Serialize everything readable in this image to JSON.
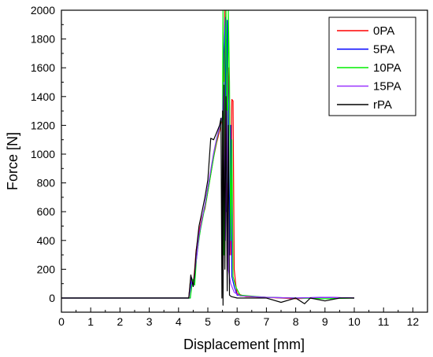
{
  "chart_data": {
    "type": "line",
    "title": "",
    "xlabel": "Displacement [mm]",
    "ylabel": "Force [N]",
    "xlim": [
      0,
      12.5
    ],
    "ylim": [
      -100,
      2000
    ],
    "x_ticks": [
      0,
      1,
      2,
      3,
      4,
      5,
      6,
      7,
      8,
      9,
      10,
      11,
      12
    ],
    "y_ticks": [
      0,
      200,
      400,
      600,
      800,
      1000,
      1200,
      1400,
      1600,
      1800,
      2000
    ],
    "grid": false,
    "legend": "top-right",
    "series": [
      {
        "name": "0PA",
        "color": "#ff0000",
        "points": [
          [
            0,
            0
          ],
          [
            4.35,
            0
          ],
          [
            4.42,
            150
          ],
          [
            4.5,
            90
          ],
          [
            4.55,
            200
          ],
          [
            4.6,
            330
          ],
          [
            4.7,
            460
          ],
          [
            4.8,
            560
          ],
          [
            4.9,
            620
          ],
          [
            5.0,
            740
          ],
          [
            5.1,
            860
          ],
          [
            5.2,
            980
          ],
          [
            5.3,
            1080
          ],
          [
            5.4,
            1160
          ],
          [
            5.5,
            1250
          ],
          [
            5.55,
            1300
          ],
          [
            5.58,
            2000
          ],
          [
            5.6,
            900
          ],
          [
            5.63,
            1800
          ],
          [
            5.66,
            400
          ],
          [
            5.7,
            1600
          ],
          [
            5.75,
            1300
          ],
          [
            5.78,
            300
          ],
          [
            5.82,
            1380
          ],
          [
            5.86,
            1370
          ],
          [
            5.9,
            200
          ],
          [
            5.95,
            100
          ],
          [
            6.0,
            30
          ],
          [
            6.3,
            10
          ],
          [
            7,
            5
          ],
          [
            8,
            -5
          ],
          [
            9,
            5
          ],
          [
            10,
            0
          ]
        ]
      },
      {
        "name": "5PA",
        "color": "#0000ff",
        "points": [
          [
            0,
            0
          ],
          [
            4.4,
            0
          ],
          [
            4.45,
            140
          ],
          [
            4.5,
            80
          ],
          [
            4.6,
            250
          ],
          [
            4.7,
            420
          ],
          [
            4.8,
            540
          ],
          [
            4.9,
            640
          ],
          [
            5.0,
            760
          ],
          [
            5.1,
            880
          ],
          [
            5.2,
            1000
          ],
          [
            5.3,
            1100
          ],
          [
            5.4,
            1180
          ],
          [
            5.5,
            1260
          ],
          [
            5.55,
            1700
          ],
          [
            5.6,
            1950
          ],
          [
            5.63,
            600
          ],
          [
            5.66,
            1930
          ],
          [
            5.7,
            1400
          ],
          [
            5.74,
            300
          ],
          [
            5.78,
            1200
          ],
          [
            5.82,
            150
          ],
          [
            5.9,
            80
          ],
          [
            6.0,
            20
          ],
          [
            6.5,
            10
          ],
          [
            7,
            5
          ],
          [
            8,
            0
          ],
          [
            9,
            5
          ],
          [
            10,
            0
          ]
        ]
      },
      {
        "name": "10PA",
        "color": "#00ee00",
        "points": [
          [
            0,
            0
          ],
          [
            4.4,
            0
          ],
          [
            4.48,
            130
          ],
          [
            4.55,
            90
          ],
          [
            4.62,
            300
          ],
          [
            4.75,
            480
          ],
          [
            4.85,
            580
          ],
          [
            4.95,
            680
          ],
          [
            5.05,
            800
          ],
          [
            5.15,
            920
          ],
          [
            5.25,
            1040
          ],
          [
            5.35,
            1140
          ],
          [
            5.45,
            1220
          ],
          [
            5.5,
            1240
          ],
          [
            5.52,
            2000
          ],
          [
            5.55,
            300
          ],
          [
            5.58,
            1600
          ],
          [
            5.62,
            2000
          ],
          [
            5.66,
            800
          ],
          [
            5.7,
            2000
          ],
          [
            5.74,
            1500
          ],
          [
            5.78,
            400
          ],
          [
            5.82,
            1100
          ],
          [
            5.86,
            150
          ],
          [
            5.95,
            80
          ],
          [
            6.1,
            20
          ],
          [
            7,
            5
          ],
          [
            8,
            0
          ],
          [
            9,
            -5
          ],
          [
            10,
            0
          ]
        ]
      },
      {
        "name": "15PA",
        "color": "#9933ff",
        "points": [
          [
            0,
            0
          ],
          [
            4.35,
            0
          ],
          [
            4.42,
            130
          ],
          [
            4.5,
            80
          ],
          [
            4.6,
            260
          ],
          [
            4.7,
            440
          ],
          [
            4.8,
            550
          ],
          [
            4.9,
            650
          ],
          [
            5.0,
            770
          ],
          [
            5.1,
            890
          ],
          [
            5.2,
            1010
          ],
          [
            5.3,
            1110
          ],
          [
            5.4,
            1190
          ],
          [
            5.5,
            1260
          ],
          [
            5.55,
            1500
          ],
          [
            5.6,
            400
          ],
          [
            5.65,
            1300
          ],
          [
            5.7,
            200
          ],
          [
            5.78,
            100
          ],
          [
            5.9,
            40
          ],
          [
            6.1,
            15
          ],
          [
            7,
            5
          ],
          [
            8,
            0
          ],
          [
            9,
            5
          ],
          [
            10,
            0
          ]
        ]
      },
      {
        "name": "rPA",
        "color": "#000000",
        "points": [
          [
            0,
            0
          ],
          [
            4.35,
            0
          ],
          [
            4.42,
            160
          ],
          [
            4.5,
            80
          ],
          [
            4.55,
            180
          ],
          [
            4.6,
            320
          ],
          [
            4.7,
            500
          ],
          [
            4.8,
            600
          ],
          [
            4.9,
            700
          ],
          [
            5.0,
            820
          ],
          [
            5.1,
            1110
          ],
          [
            5.2,
            1100
          ],
          [
            5.3,
            1150
          ],
          [
            5.4,
            1200
          ],
          [
            5.45,
            1250
          ],
          [
            5.48,
            0
          ],
          [
            5.5,
            1300
          ],
          [
            5.52,
            -50
          ],
          [
            5.55,
            1480
          ],
          [
            5.58,
            200
          ],
          [
            5.62,
            1400
          ],
          [
            5.66,
            50
          ],
          [
            5.7,
            1200
          ],
          [
            5.74,
            20
          ],
          [
            5.8,
            10
          ],
          [
            6.0,
            0
          ],
          [
            7,
            0
          ],
          [
            7.5,
            -30
          ],
          [
            8,
            0
          ],
          [
            8.3,
            -40
          ],
          [
            8.5,
            0
          ],
          [
            9,
            -20
          ],
          [
            9.5,
            0
          ],
          [
            10,
            0
          ]
        ]
      }
    ]
  }
}
